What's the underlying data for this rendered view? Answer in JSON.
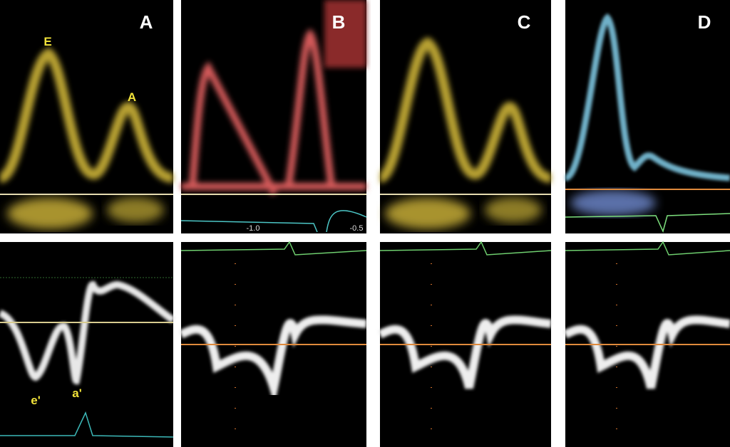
{
  "panels": [
    {
      "label": "A",
      "annotations": [
        "E",
        "A",
        "e'",
        "a'"
      ]
    },
    {
      "label": "B",
      "axis_labels": [
        "-1.0",
        "-0.5"
      ]
    },
    {
      "label": "C"
    },
    {
      "label": "D"
    }
  ]
}
